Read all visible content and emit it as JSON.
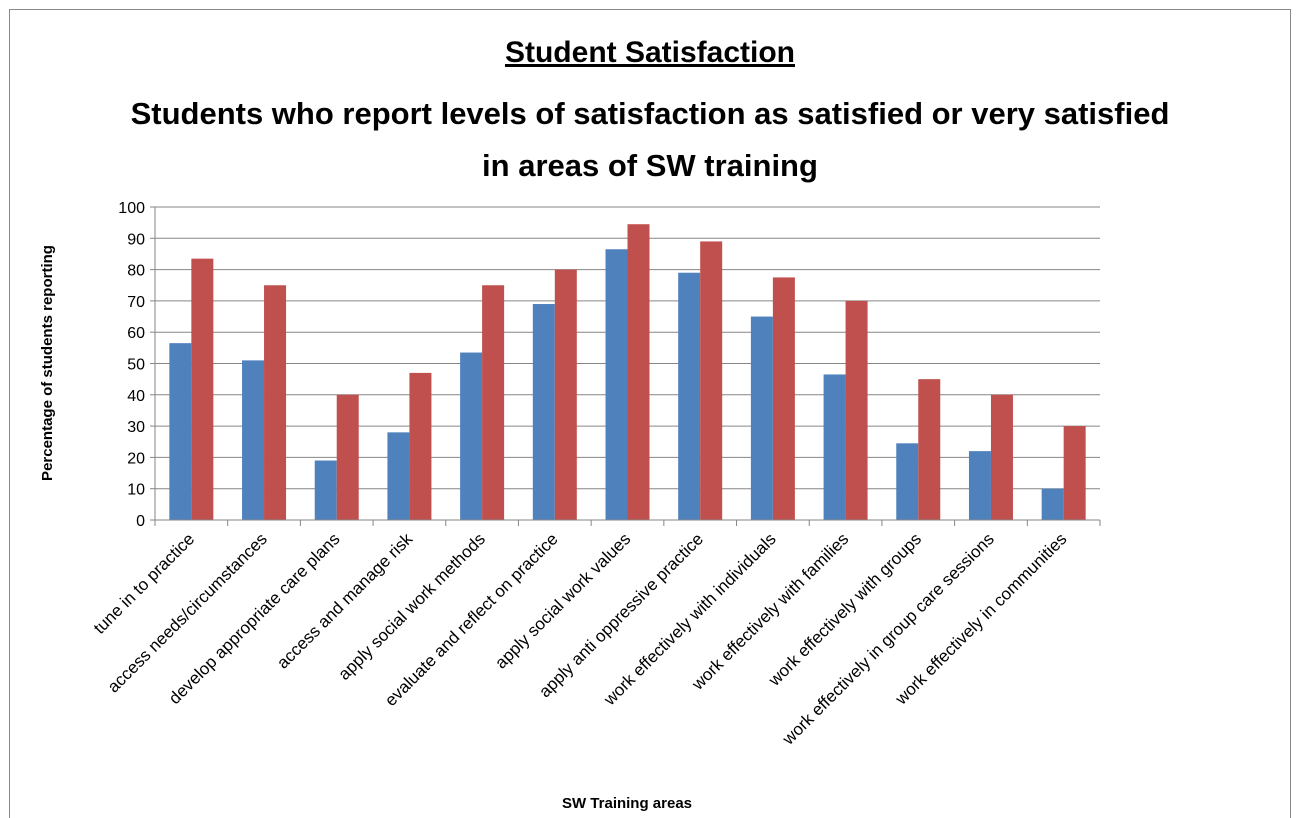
{
  "chart_data": {
    "type": "bar",
    "title": "Student Satisfaction",
    "subtitle": "Students who report levels of satisfaction as satisfied or very satisfied in areas of SW training",
    "x_label": "SW Training areas",
    "y_label": "Percentage of students reporting",
    "categories": [
      "tune in to practice",
      "access needs/circumstances",
      "develop appropriate care plans",
      "access and manage risk",
      "apply social work methods",
      "evaluate and reflect on practice",
      "apply social work values",
      "apply anti oppressive practice",
      "work effectively with individuals",
      "work effectively with families",
      "work effectively with groups",
      "work effectively in group care sessions",
      "work effectively in communities"
    ],
    "series": [
      {
        "color": "#4f81bd",
        "values": [
          56.5,
          51,
          19,
          28,
          53.5,
          69,
          86.5,
          79,
          65,
          46.5,
          24.5,
          22,
          10
        ]
      },
      {
        "color": "#c0504d",
        "values": [
          83.5,
          75,
          40,
          47,
          75,
          80,
          94.5,
          89,
          77.5,
          70,
          45,
          40,
          30
        ]
      }
    ],
    "ylim": [
      0,
      100
    ],
    "yticks": [
      0,
      10,
      20,
      30,
      40,
      50,
      60,
      70,
      80,
      90,
      100
    ],
    "grid": true
  }
}
